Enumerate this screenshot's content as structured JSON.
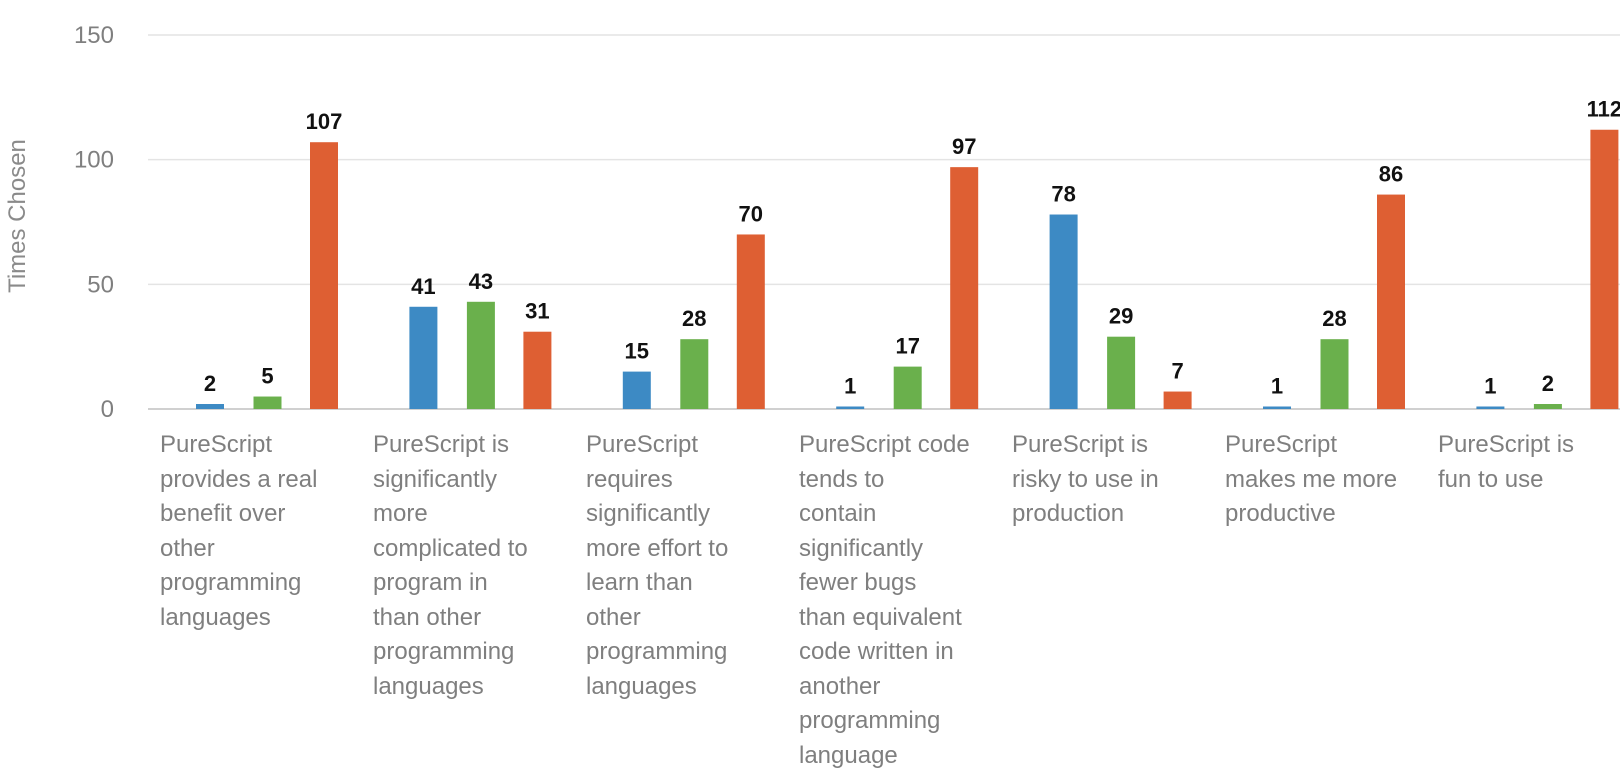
{
  "chart_data": {
    "type": "bar",
    "title": "",
    "xlabel": "",
    "ylabel": "Times Chosen",
    "ylim": [
      0,
      150
    ],
    "yticks": [
      0,
      50,
      100,
      150
    ],
    "grid": true,
    "categories": [
      "PureScript provides a real benefit over other programming languages",
      "PureScript is significantly more complicated to program in than other programming languages",
      "PureScript requires significantly more effort to learn than other programming languages",
      "PureScript code tends to contain significantly fewer bugs than equivalent code written in another programming language",
      "PureScript is risky to use in production",
      "PureScript makes me more productive",
      "PureScript is fun to use"
    ],
    "category_lines": [
      [
        "PureScript",
        "provides a real",
        "benefit over",
        "other",
        "programming",
        "languages"
      ],
      [
        "PureScript is",
        "significantly",
        "more",
        "complicated to",
        "program in",
        "than other",
        "programming",
        "languages"
      ],
      [
        "PureScript",
        "requires",
        "significantly",
        "more effort to",
        "learn than",
        "other",
        "programming",
        "languages"
      ],
      [
        "PureScript code",
        "tends to",
        "contain",
        "significantly",
        "fewer bugs",
        "than equivalent",
        "code written in",
        "another",
        "programming",
        "language"
      ],
      [
        "PureScript is",
        "risky to use in",
        "production"
      ],
      [
        "PureScript",
        "makes me more",
        "productive"
      ],
      [
        "PureScript is",
        "fun to use"
      ]
    ],
    "series": [
      {
        "color": "#3d8ac4",
        "values": [
          2,
          41,
          15,
          1,
          78,
          1,
          1
        ]
      },
      {
        "color": "#6ab04c",
        "values": [
          5,
          43,
          28,
          17,
          29,
          28,
          2
        ]
      },
      {
        "color": "#de5f33",
        "values": [
          107,
          31,
          70,
          97,
          7,
          86,
          112
        ]
      }
    ],
    "data_labels": true
  }
}
